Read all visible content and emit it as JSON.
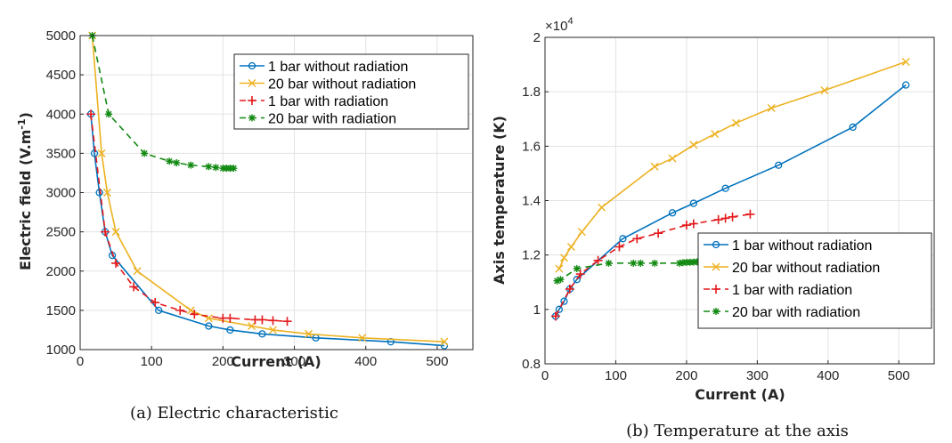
{
  "chart_data": [
    {
      "type": "line",
      "caption": "(a) Electric characteristic",
      "xlabel": "Current (A)",
      "ylabel": "Electric field (V.m",
      "ylabel_sup": "-1",
      "ylabel_close": ")",
      "xlim": [
        0,
        550
      ],
      "ylim": [
        1000,
        5000
      ],
      "xticks": [
        "0",
        "100",
        "200",
        "300",
        "400",
        "500"
      ],
      "yticks": [
        "1000",
        "1500",
        "2000",
        "2500",
        "3000",
        "3500",
        "4000",
        "4500",
        "5000"
      ],
      "legend_position": "top-right",
      "series": [
        {
          "name": "1 bar without radiation",
          "color": "#0072BD",
          "marker": "circle",
          "dash": "solid",
          "x": [
            15,
            20,
            27,
            35,
            45,
            110,
            180,
            210,
            255,
            330,
            435,
            510
          ],
          "y": [
            4000,
            3500,
            3000,
            2500,
            2200,
            1500,
            1300,
            1250,
            1200,
            1150,
            1100,
            1050
          ]
        },
        {
          "name": "20 bar without radiation",
          "color": "#EDB120",
          "marker": "x",
          "dash": "solid",
          "x": [
            17,
            30,
            38,
            50,
            80,
            155,
            180,
            240,
            270,
            320,
            395,
            510
          ],
          "y": [
            5000,
            3500,
            3000,
            2500,
            2000,
            1500,
            1400,
            1300,
            1250,
            1200,
            1150,
            1100
          ]
        },
        {
          "name": "1 bar with radiation",
          "color": "#E41A1C",
          "marker": "plus",
          "dash": "dashed",
          "x": [
            15,
            35,
            50,
            75,
            105,
            140,
            160,
            200,
            210,
            245,
            255,
            270,
            290
          ],
          "y": [
            4000,
            2500,
            2100,
            1800,
            1600,
            1500,
            1450,
            1400,
            1400,
            1380,
            1380,
            1370,
            1360
          ]
        },
        {
          "name": "20 bar with radiation",
          "color": "#128A12",
          "marker": "star",
          "dash": "dashed",
          "x": [
            17,
            40,
            90,
            125,
            135,
            155,
            180,
            190,
            200,
            205,
            210,
            215
          ],
          "y": [
            5000,
            4000,
            3500,
            3400,
            3380,
            3350,
            3330,
            3320,
            3310,
            3310,
            3310,
            3310
          ]
        }
      ]
    },
    {
      "type": "line",
      "caption": "(b) Temperature at the axis",
      "xlabel": "Current (A)",
      "ylabel": "Axis temperature (K)",
      "exponent_base": "×10",
      "exponent_power": "4",
      "xlim": [
        0,
        550
      ],
      "ylim": [
        0.8,
        2.0
      ],
      "xticks": [
        "0",
        "100",
        "200",
        "300",
        "400",
        "500"
      ],
      "yticks": [
        "0.8",
        "1",
        "1.2",
        "1.4",
        "1.6",
        "1.8",
        "2"
      ],
      "legend_position": "bottom-right",
      "series": [
        {
          "name": "1 bar without radiation",
          "color": "#0072BD",
          "marker": "circle",
          "dash": "solid",
          "x": [
            15,
            20,
            27,
            35,
            45,
            110,
            180,
            210,
            255,
            330,
            435,
            510
          ],
          "y": [
            0.975,
            1.0,
            1.03,
            1.075,
            1.11,
            1.26,
            1.355,
            1.39,
            1.445,
            1.53,
            1.67,
            1.825
          ]
        },
        {
          "name": "20 bar without radiation",
          "color": "#EDB120",
          "marker": "x",
          "dash": "solid",
          "x": [
            20,
            27,
            37,
            52,
            80,
            155,
            180,
            210,
            240,
            270,
            320,
            395,
            510
          ],
          "y": [
            1.15,
            1.19,
            1.23,
            1.285,
            1.375,
            1.525,
            1.555,
            1.605,
            1.645,
            1.685,
            1.74,
            1.805,
            1.91
          ]
        },
        {
          "name": "1 bar with radiation",
          "color": "#E41A1C",
          "marker": "plus",
          "dash": "dashed",
          "x": [
            15,
            35,
            50,
            75,
            105,
            130,
            160,
            200,
            210,
            245,
            255,
            265,
            290
          ],
          "y": [
            0.975,
            1.075,
            1.13,
            1.18,
            1.23,
            1.26,
            1.28,
            1.31,
            1.315,
            1.33,
            1.335,
            1.34,
            1.35
          ]
        },
        {
          "name": "20 bar with radiation",
          "color": "#128A12",
          "marker": "star",
          "dash": "dashed",
          "x": [
            17,
            22,
            45,
            90,
            125,
            135,
            155,
            190,
            195,
            200,
            205,
            210,
            215
          ],
          "y": [
            1.105,
            1.11,
            1.15,
            1.17,
            1.17,
            1.17,
            1.17,
            1.17,
            1.172,
            1.173,
            1.173,
            1.174,
            1.175
          ]
        }
      ]
    }
  ]
}
